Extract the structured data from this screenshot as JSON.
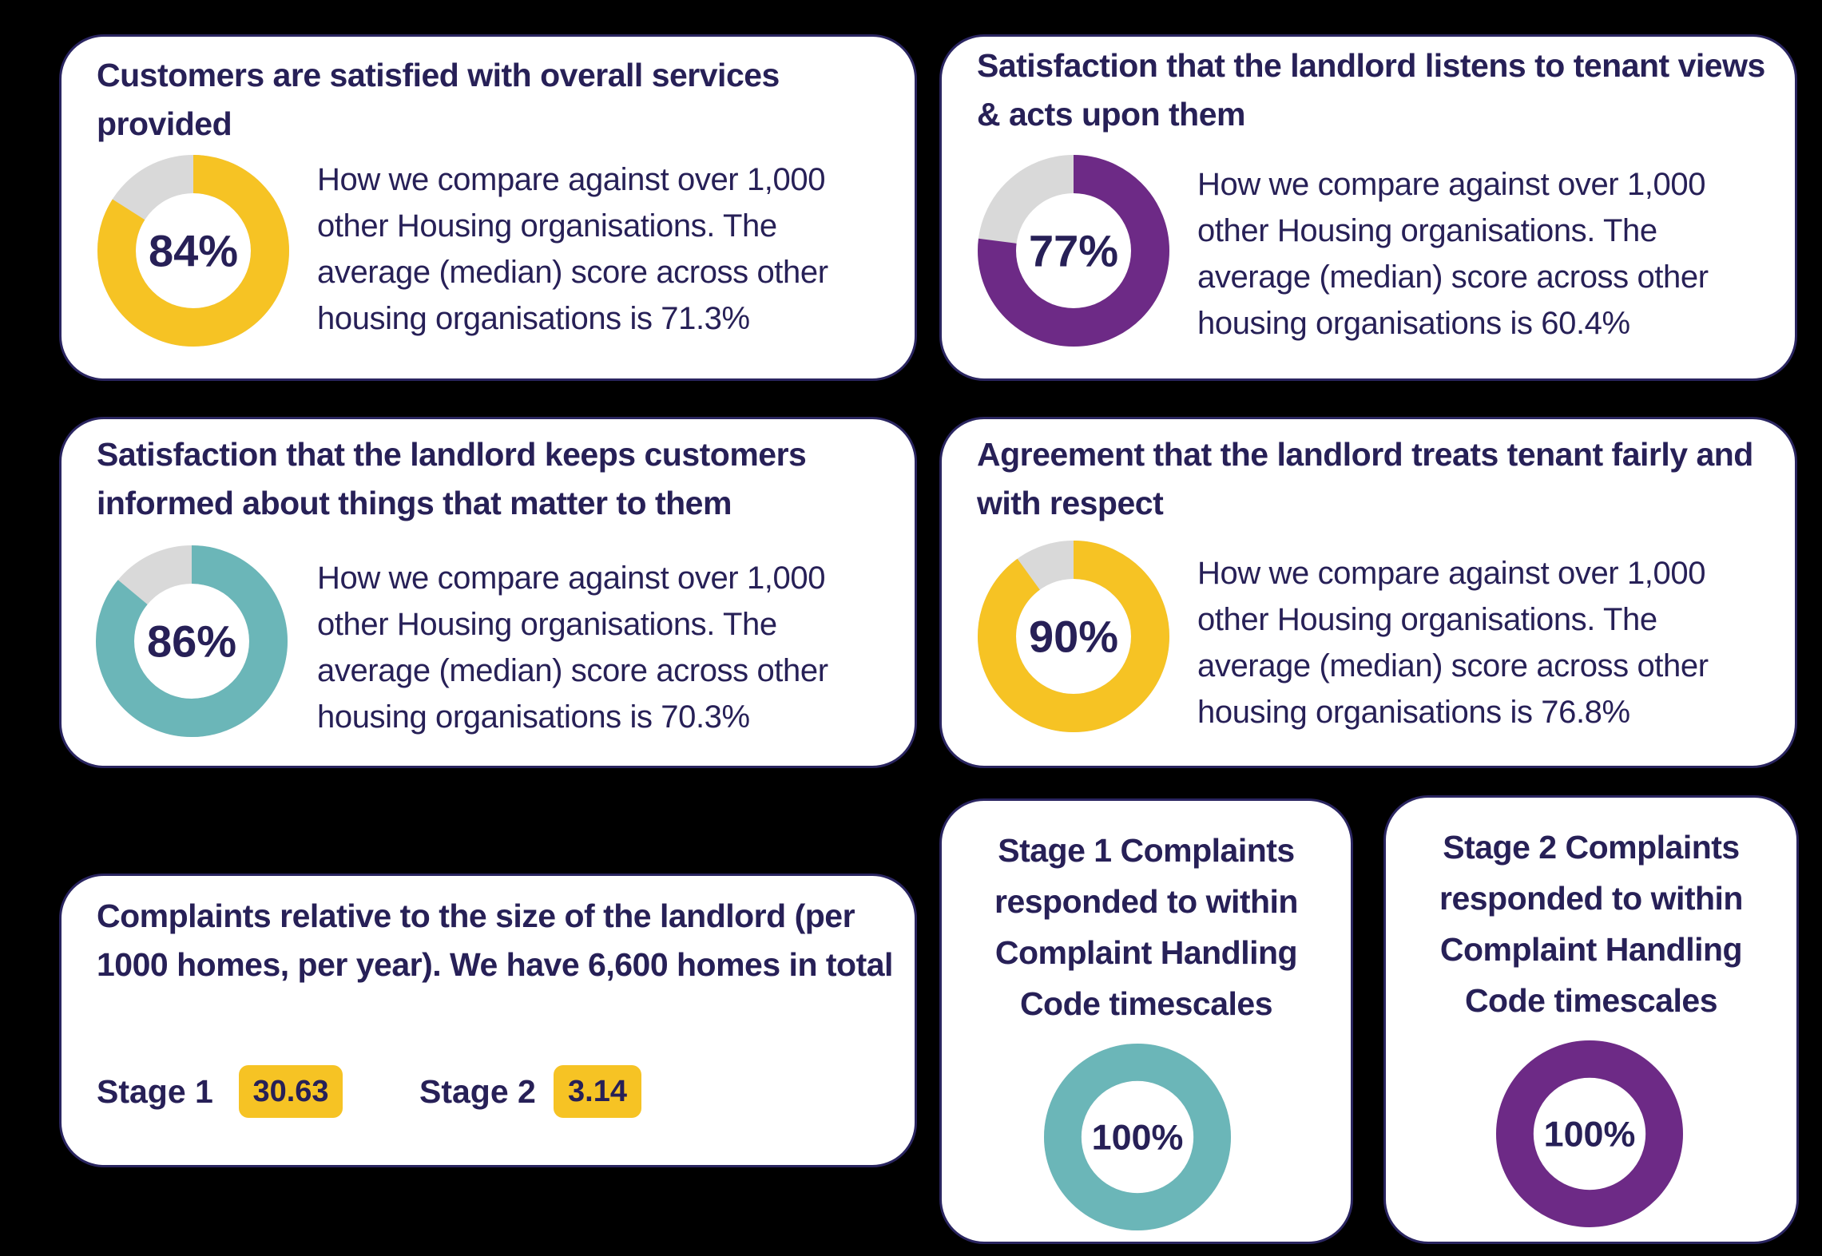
{
  "colors": {
    "background": "#000000",
    "card": "#ffffff",
    "border": "#2a2560",
    "text": "#272057",
    "yellow": "#f6c324",
    "purple": "#6d2a86",
    "teal": "#6bb6b8",
    "track": "#d9d9d9"
  },
  "chart_data": [
    {
      "type": "pie",
      "title": "Customers are satisfied with overall services provided",
      "value_label": "84%",
      "values": [
        84,
        16
      ],
      "color": "yellow",
      "description": "How we compare against over 1,000 other Housing organisations. The average (median) score across other housing organisations is 71.3%"
    },
    {
      "type": "pie",
      "title": "Satisfaction that the landlord listens to tenant views & acts upon them",
      "value_label": "77%",
      "values": [
        77,
        23
      ],
      "color": "purple",
      "description": "How we compare against over 1,000 other Housing organisations. The average (median) score across other housing organisations is 60.4%"
    },
    {
      "type": "pie",
      "title": "Satisfaction that the landlord keeps customers informed about things that matter to them",
      "value_label": "86%",
      "values": [
        86,
        14
      ],
      "color": "teal",
      "description": "How we compare against over 1,000 other Housing organisations. The average (median) score across other housing organisations is 70.3%"
    },
    {
      "type": "pie",
      "title": "Agreement that the landlord treats tenant fairly and with respect",
      "value_label": "90%",
      "values": [
        90,
        10
      ],
      "color": "yellow",
      "description": "How we compare against over 1,000 other Housing organisations. The average (median) score across other housing organisations is 76.8%"
    },
    {
      "type": "pie",
      "title": "Stage 1 Complaints responded to within Complaint Handling Code timescales",
      "value_label": "100%",
      "values": [
        100,
        0
      ],
      "color": "teal"
    },
    {
      "type": "pie",
      "title": "Stage 2 Complaints responded to within Complaint Handling Code timescales",
      "value_label": "100%",
      "values": [
        100,
        0
      ],
      "color": "purple"
    }
  ],
  "complaints": {
    "title": "Complaints relative to the size of the landlord (per 1000 homes, per year). We have 6,600 homes in total",
    "stage1_label": "Stage 1",
    "stage1_value": "30.63",
    "stage2_label": "Stage 2",
    "stage2_value": "3.14"
  }
}
